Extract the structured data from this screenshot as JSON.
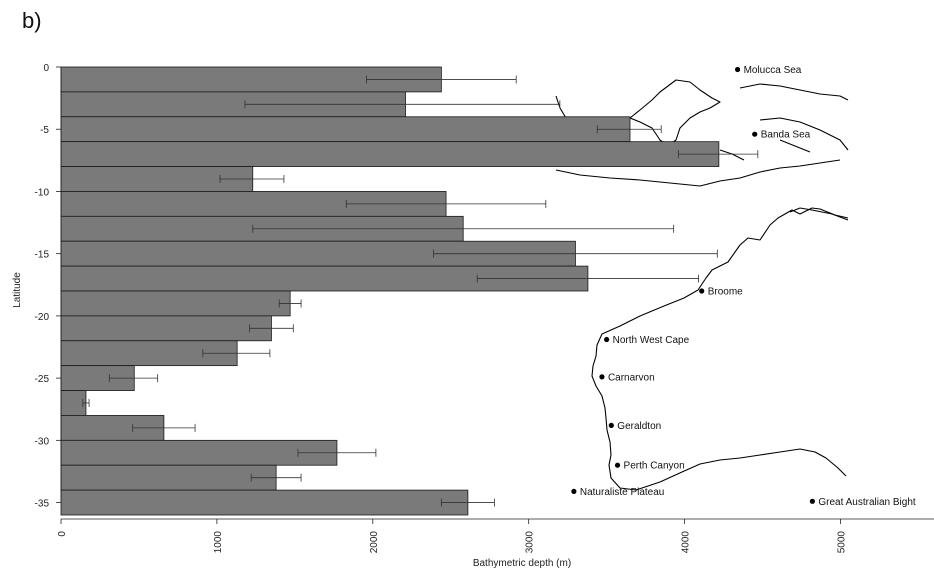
{
  "panel_label": "b)",
  "chart_data": {
    "type": "bar",
    "orientation": "horizontal",
    "title": "",
    "xlabel": "Bathymetric depth (m)",
    "ylabel": "Latitude",
    "xlim": [
      0,
      5600
    ],
    "ylim": [
      -36,
      0
    ],
    "x_ticks": [
      0,
      1000,
      2000,
      3000,
      4000,
      5000
    ],
    "y_ticks": [
      0,
      -5,
      -10,
      -15,
      -20,
      -25,
      -30,
      -35
    ],
    "grid": false,
    "bars": [
      {
        "lat": -1,
        "value": 2440,
        "err_low": 1960,
        "err_high": 2920
      },
      {
        "lat": -3,
        "value": 2210,
        "err_low": 1180,
        "err_high": 3200
      },
      {
        "lat": -5,
        "value": 3650,
        "err_low": 3440,
        "err_high": 3850
      },
      {
        "lat": -7,
        "value": 4220,
        "err_low": 3960,
        "err_high": 4470
      },
      {
        "lat": -9,
        "value": 1230,
        "err_low": 1020,
        "err_high": 1430
      },
      {
        "lat": -11,
        "value": 2470,
        "err_low": 1830,
        "err_high": 3110
      },
      {
        "lat": -13,
        "value": 2580,
        "err_low": 1230,
        "err_high": 3930
      },
      {
        "lat": -15,
        "value": 3300,
        "err_low": 2390,
        "err_high": 4210
      },
      {
        "lat": -17,
        "value": 3380,
        "err_low": 2670,
        "err_high": 4090
      },
      {
        "lat": -19,
        "value": 1470,
        "err_low": 1400,
        "err_high": 1540
      },
      {
        "lat": -21,
        "value": 1350,
        "err_low": 1210,
        "err_high": 1490
      },
      {
        "lat": -23,
        "value": 1130,
        "err_low": 910,
        "err_high": 1340
      },
      {
        "lat": -25,
        "value": 470,
        "err_low": 310,
        "err_high": 620
      },
      {
        "lat": -27,
        "value": 160,
        "err_low": 140,
        "err_high": 180
      },
      {
        "lat": -29,
        "value": 660,
        "err_low": 460,
        "err_high": 860
      },
      {
        "lat": -31,
        "value": 1770,
        "err_low": 1520,
        "err_high": 2020
      },
      {
        "lat": -33,
        "value": 1380,
        "err_low": 1220,
        "err_high": 1540
      },
      {
        "lat": -35,
        "value": 2610,
        "err_low": 2440,
        "err_high": 2780
      }
    ],
    "annotations": [
      {
        "label": "Molucca Sea",
        "x": 4340,
        "y": -0.2
      },
      {
        "label": "Banda Sea",
        "x": 4450,
        "y": -5.4
      },
      {
        "label": "Broome",
        "x": 4110,
        "y": -18.0
      },
      {
        "label": "North West Cape",
        "x": 3500,
        "y": -21.9
      },
      {
        "label": "Carnarvon",
        "x": 3470,
        "y": -24.9
      },
      {
        "label": "Geraldton",
        "x": 3530,
        "y": -28.8
      },
      {
        "label": "Perth Canyon",
        "x": 3570,
        "y": -32.0
      },
      {
        "label": "Naturaliste Plateau",
        "x": 3290,
        "y": -34.1
      },
      {
        "label": "Great Australian Bight",
        "x": 4820,
        "y": -34.9
      }
    ]
  }
}
